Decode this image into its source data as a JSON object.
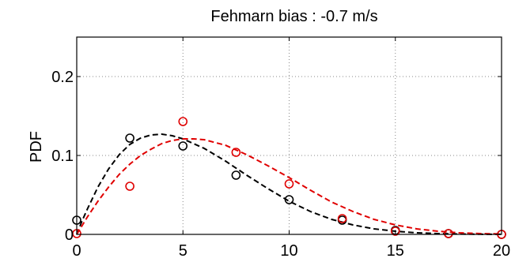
{
  "chart_data": {
    "type": "scatter",
    "title": "Fehmarn bias  : -0.7 m/s",
    "xlabel": "",
    "ylabel": "PDF",
    "xlim": [
      0,
      20
    ],
    "ylim": [
      0,
      0.25
    ],
    "x_ticks": [
      0,
      5,
      10,
      15,
      20
    ],
    "x_tick_labels": [
      "0",
      "5",
      "10",
      "15",
      "20"
    ],
    "y_ticks": [
      0,
      0.1,
      0.2
    ],
    "y_tick_labels": [
      "0",
      "0.1",
      "0.2"
    ],
    "grid": true,
    "series": [
      {
        "color": "#000000",
        "marker": "circle",
        "line": "dashed",
        "points": {
          "x": [
            0,
            2.5,
            5,
            7.5,
            10,
            12.5,
            15,
            17.5,
            20
          ],
          "y": [
            0.018,
            0.122,
            0.112,
            0.075,
            0.044,
            0.018,
            0.005,
            0.001,
            0.0
          ]
        },
        "curve": {
          "x": [
            0,
            0.25,
            0.5,
            1,
            1.5,
            2,
            2.5,
            3,
            3.5,
            4,
            4.5,
            5,
            6,
            7,
            8,
            9,
            10,
            11,
            12,
            13,
            14,
            15,
            16,
            17,
            18,
            19,
            20
          ],
          "y": [
            0,
            0.017,
            0.032,
            0.06,
            0.083,
            0.101,
            0.114,
            0.122,
            0.126,
            0.127,
            0.125,
            0.121,
            0.109,
            0.093,
            0.075,
            0.058,
            0.042,
            0.029,
            0.019,
            0.012,
            0.007,
            0.004,
            0.002,
            0.001,
            0.0005,
            0.0002,
            0.0001
          ]
        }
      },
      {
        "color": "#e00000",
        "marker": "circle",
        "line": "dashed",
        "points": {
          "x": [
            0,
            2.5,
            5,
            7.5,
            10,
            12.5,
            15,
            17.5,
            20
          ],
          "y": [
            0.001,
            0.061,
            0.143,
            0.104,
            0.064,
            0.02,
            0.004,
            0.001,
            0.0
          ]
        },
        "curve": {
          "x": [
            0,
            0.25,
            0.5,
            1,
            1.5,
            2,
            2.5,
            3,
            3.5,
            4,
            4.5,
            5,
            5.5,
            6,
            7,
            8,
            9,
            10,
            11,
            12,
            13,
            14,
            15,
            16,
            17,
            18,
            19,
            20
          ],
          "y": [
            0,
            0.011,
            0.022,
            0.042,
            0.06,
            0.076,
            0.089,
            0.1,
            0.108,
            0.115,
            0.119,
            0.121,
            0.121,
            0.12,
            0.113,
            0.101,
            0.087,
            0.072,
            0.056,
            0.041,
            0.029,
            0.019,
            0.012,
            0.007,
            0.004,
            0.002,
            0.001,
            0.0005
          ]
        }
      }
    ]
  }
}
